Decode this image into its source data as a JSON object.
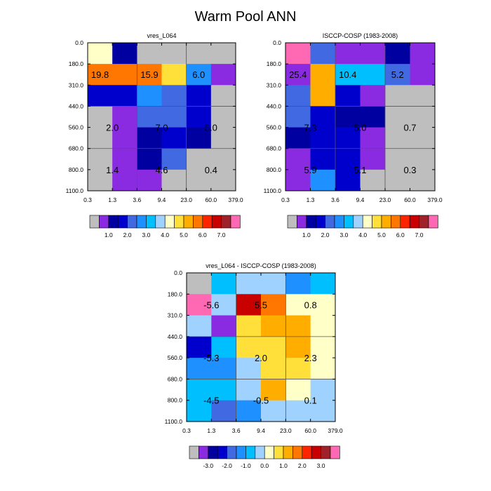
{
  "title": "Warm Pool ANN",
  "x_ticks": [
    "0.3",
    "1.3",
    "3.6",
    "9.4",
    "23.0",
    "60.0",
    "379.0"
  ],
  "y_ticks": [
    "0.0",
    "180.0",
    "310.0",
    "440.0",
    "560.0",
    "680.0",
    "800.0",
    "1100.0"
  ],
  "colors": {
    "palette": [
      "#bebebe",
      "#8a2be2",
      "#0000a0",
      "#0000cd",
      "#4169e1",
      "#1e90ff",
      "#00bfff",
      "#a0d2ff",
      "#ffffc8",
      "#ffe03a",
      "#ffae00",
      "#ff7700",
      "#ff2400",
      "#c80000",
      "#a0212a",
      "#ff69b4"
    ]
  },
  "chart_data": [
    {
      "type": "heatmap",
      "title": "vres_L064",
      "xlabel": "",
      "ylabel": "",
      "cells": [
        [
          8,
          2,
          0,
          0,
          0,
          0
        ],
        [
          11,
          11,
          11,
          9,
          5,
          1
        ],
        [
          3,
          3,
          5,
          4,
          3,
          0
        ],
        [
          0,
          1,
          4,
          4,
          3,
          0
        ],
        [
          0,
          1,
          2,
          3,
          2,
          0
        ],
        [
          0,
          1,
          2,
          4,
          0,
          0
        ],
        [
          0,
          1,
          1,
          0,
          0,
          0
        ]
      ],
      "labels": [
        {
          "text": "19.8",
          "col": 0.5,
          "row": 1.5
        },
        {
          "text": "15.9",
          "col": 2.5,
          "row": 1.5
        },
        {
          "text": "6.0",
          "col": 4.5,
          "row": 1.5
        },
        {
          "text": "2.0",
          "col": 1,
          "row": 4
        },
        {
          "text": "7.0",
          "col": 3,
          "row": 4
        },
        {
          "text": "5.0",
          "col": 5,
          "row": 4
        },
        {
          "text": "1.4",
          "col": 1,
          "row": 6
        },
        {
          "text": "4.6",
          "col": 3,
          "row": 6
        },
        {
          "text": "0.4",
          "col": 5,
          "row": 6
        }
      ],
      "colorbar": {
        "labels": [
          "1.0",
          "2.0",
          "3.0",
          "4.0",
          "5.0",
          "6.0",
          "7.0"
        ]
      }
    },
    {
      "type": "heatmap",
      "title": "ISCCP-COSP (1983-2008)",
      "xlabel": "",
      "ylabel": "",
      "cells": [
        [
          15,
          4,
          1,
          1,
          2,
          1
        ],
        [
          1,
          10,
          6,
          6,
          4,
          1
        ],
        [
          4,
          10,
          3,
          1,
          0,
          0
        ],
        [
          4,
          3,
          2,
          2,
          0,
          0
        ],
        [
          2,
          3,
          3,
          1,
          0,
          0
        ],
        [
          1,
          3,
          3,
          1,
          0,
          0
        ],
        [
          1,
          5,
          3,
          0,
          0,
          0
        ]
      ],
      "labels": [
        {
          "text": "25.4",
          "col": 0.5,
          "row": 1.5
        },
        {
          "text": "10.4",
          "col": 2.5,
          "row": 1.5
        },
        {
          "text": "5.2",
          "col": 4.5,
          "row": 1.5
        },
        {
          "text": "7.3",
          "col": 1,
          "row": 4
        },
        {
          "text": "5.0",
          "col": 3,
          "row": 4
        },
        {
          "text": "0.7",
          "col": 5,
          "row": 4
        },
        {
          "text": "5.9",
          "col": 1,
          "row": 6
        },
        {
          "text": "5.1",
          "col": 3,
          "row": 6
        },
        {
          "text": "0.3",
          "col": 5,
          "row": 6
        }
      ],
      "colorbar": {
        "labels": [
          "1.0",
          "2.0",
          "3.0",
          "4.0",
          "5.0",
          "6.0",
          "7.0"
        ]
      }
    },
    {
      "type": "heatmap",
      "title": "vres_L064 - ISCCP-COSP (1983-2008)",
      "xlabel": "",
      "ylabel": "",
      "cells": [
        [
          0,
          6,
          7,
          7,
          5,
          6
        ],
        [
          15,
          7,
          13,
          11,
          8,
          8
        ],
        [
          7,
          1,
          9,
          10,
          10,
          8
        ],
        [
          3,
          6,
          9,
          9,
          10,
          8
        ],
        [
          5,
          5,
          7,
          9,
          9,
          8
        ],
        [
          6,
          6,
          7,
          10,
          8,
          7
        ],
        [
          6,
          4,
          5,
          7,
          7,
          7
        ]
      ],
      "labels": [
        {
          "text": "-5.6",
          "col": 1,
          "row": 1.5
        },
        {
          "text": "5.5",
          "col": 3,
          "row": 1.5
        },
        {
          "text": "0.8",
          "col": 5,
          "row": 1.5
        },
        {
          "text": "-5.3",
          "col": 1,
          "row": 4
        },
        {
          "text": "2.0",
          "col": 3,
          "row": 4
        },
        {
          "text": "2.3",
          "col": 5,
          "row": 4
        },
        {
          "text": "-4.5",
          "col": 1,
          "row": 6
        },
        {
          "text": "-0.5",
          "col": 3,
          "row": 6
        },
        {
          "text": "0.1",
          "col": 5,
          "row": 6
        }
      ],
      "colorbar": {
        "labels": [
          "-3.0",
          "-2.0",
          "-1.0",
          "0.0",
          "1.0",
          "2.0",
          "3.0"
        ]
      }
    }
  ]
}
